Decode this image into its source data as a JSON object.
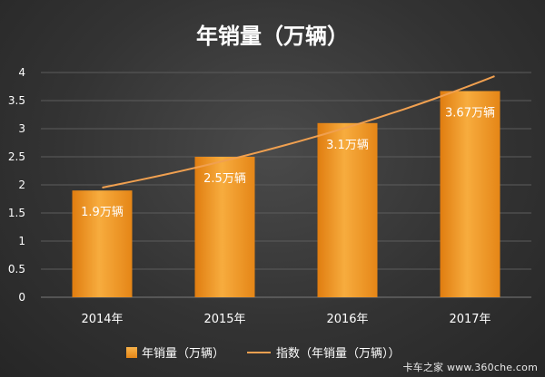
{
  "chart_data": {
    "type": "bar",
    "title": "年销量（万辆）",
    "categories": [
      "2014年",
      "2015年",
      "2016年",
      "2017年"
    ],
    "series": [
      {
        "name": "年销量（万辆）",
        "kind": "bar",
        "values": [
          1.9,
          2.5,
          3.1,
          3.67
        ],
        "labels": [
          "1.9万辆",
          "2.5万辆",
          "3.1万辆",
          "3.67万辆"
        ]
      },
      {
        "name": "指数（年销量（万辆））",
        "kind": "trendline"
      }
    ],
    "y_ticks": [
      "0",
      "0.5",
      "1",
      "1.5",
      "2",
      "2.5",
      "3",
      "3.5",
      "4"
    ],
    "ylim": [
      0,
      4
    ],
    "grid": true,
    "legend_position": "bottom",
    "colors": {
      "bar": "#f0931e",
      "bar_light": "#f7b24a",
      "trend": "#f0a050",
      "grid": "#5c5c5c",
      "text": "#ffffff"
    }
  },
  "watermark": "卡车之家 www.360che.com"
}
